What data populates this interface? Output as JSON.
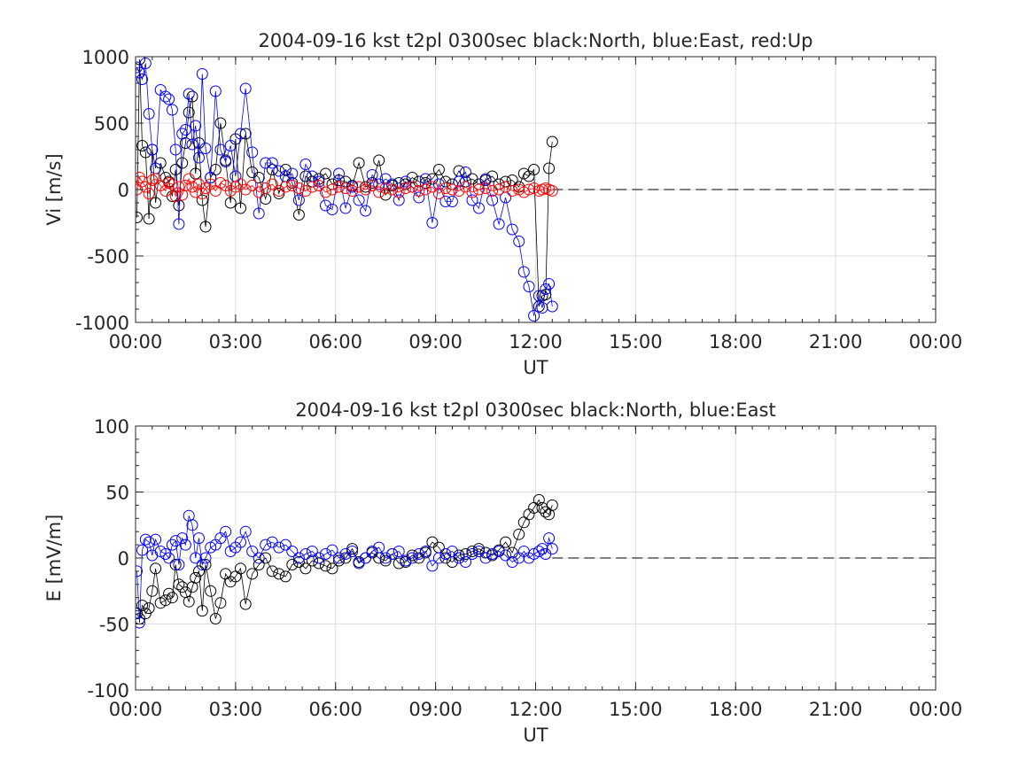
{
  "chart_data": [
    {
      "type": "scatter",
      "title": "2004-09-16 kst t2pl 0300sec black:North, blue:East, red:Up",
      "xlabel": "UT",
      "ylabel": "Vi [m/s]",
      "xlim": [
        0,
        24
      ],
      "ylim": [
        -1000,
        1000
      ],
      "x_ticks": [
        0,
        3,
        6,
        9,
        12,
        15,
        18,
        21,
        24
      ],
      "x_tick_labels": [
        "00:00",
        "03:00",
        "06:00",
        "09:00",
        "12:00",
        "15:00",
        "18:00",
        "21:00",
        "00:00"
      ],
      "y_ticks": [
        1000,
        500,
        0,
        -500,
        -1000
      ],
      "y_tick_labels": [
        "1000",
        "500",
        "0",
        "-500",
        "-1000"
      ],
      "grid": true,
      "reference_line": {
        "y": 0,
        "style": "dashed"
      },
      "series": [
        {
          "name": "North",
          "color": "#000000",
          "x": [
            0.04,
            0.12,
            0.2,
            0.3,
            0.4,
            0.5,
            0.6,
            0.75,
            0.9,
            1.0,
            1.1,
            1.2,
            1.3,
            1.4,
            1.5,
            1.6,
            1.7,
            1.8,
            1.9,
            2.0,
            2.1,
            2.25,
            2.4,
            2.55,
            2.7,
            2.85,
            3.0,
            3.15,
            3.3,
            3.5,
            3.7,
            3.9,
            4.1,
            4.3,
            4.5,
            4.7,
            4.9,
            5.1,
            5.3,
            5.5,
            5.7,
            5.9,
            6.1,
            6.3,
            6.5,
            6.7,
            6.9,
            7.1,
            7.3,
            7.5,
            7.7,
            7.9,
            8.1,
            8.3,
            8.5,
            8.7,
            8.9,
            9.1,
            9.3,
            9.5,
            9.7,
            9.9,
            10.1,
            10.3,
            10.5,
            10.7,
            10.9,
            11.1,
            11.3,
            11.5,
            11.65,
            11.8,
            11.95,
            12.1,
            12.2,
            12.3,
            12.4,
            12.5
          ],
          "y": [
            -210,
            980,
            330,
            280,
            -220,
            300,
            -100,
            200,
            90,
            60,
            -50,
            150,
            -120,
            200,
            350,
            580,
            700,
            120,
            350,
            -80,
            -280,
            90,
            150,
            500,
            220,
            -100,
            380,
            -140,
            420,
            130,
            90,
            -70,
            150,
            -30,
            150,
            50,
            -190,
            100,
            60,
            80,
            120,
            40,
            70,
            60,
            30,
            200,
            20,
            50,
            220,
            -40,
            30,
            50,
            40,
            90,
            60,
            50,
            80,
            150,
            60,
            40,
            140,
            60,
            80,
            40,
            70,
            100,
            40,
            60,
            70,
            20,
            120,
            100,
            150,
            -880,
            -800,
            -790,
            160,
            360
          ]
        },
        {
          "name": "East",
          "color": "#0000ff",
          "x": [
            0.04,
            0.12,
            0.2,
            0.3,
            0.4,
            0.5,
            0.6,
            0.75,
            0.9,
            1.0,
            1.1,
            1.2,
            1.3,
            1.4,
            1.5,
            1.6,
            1.7,
            1.8,
            1.9,
            2.0,
            2.1,
            2.25,
            2.4,
            2.55,
            2.7,
            2.85,
            3.0,
            3.15,
            3.3,
            3.5,
            3.7,
            3.9,
            4.1,
            4.3,
            4.5,
            4.7,
            4.9,
            5.1,
            5.3,
            5.5,
            5.7,
            5.9,
            6.1,
            6.3,
            6.5,
            6.7,
            6.9,
            7.1,
            7.3,
            7.5,
            7.7,
            7.9,
            8.1,
            8.3,
            8.5,
            8.7,
            8.9,
            9.1,
            9.3,
            9.5,
            9.7,
            9.9,
            10.1,
            10.3,
            10.5,
            10.7,
            10.9,
            11.1,
            11.3,
            11.5,
            11.65,
            11.8,
            11.95,
            12.1,
            12.2,
            12.3,
            12.4,
            12.5
          ],
          "y": [
            920,
            880,
            830,
            950,
            570,
            300,
            160,
            750,
            700,
            680,
            600,
            300,
            -260,
            420,
            450,
            720,
            340,
            480,
            240,
            870,
            310,
            90,
            740,
            300,
            210,
            330,
            100,
            420,
            760,
            280,
            -180,
            200,
            200,
            140,
            100,
            120,
            -80,
            190,
            100,
            60,
            -120,
            -150,
            120,
            -140,
            20,
            -80,
            -160,
            110,
            40,
            80,
            40,
            -80,
            60,
            20,
            -60,
            80,
            -250,
            40,
            -90,
            -90,
            60,
            130,
            -80,
            -140,
            80,
            -80,
            -260,
            -60,
            -300,
            -390,
            -620,
            -730,
            -950,
            -800,
            -890,
            -750,
            -710,
            -880
          ]
        },
        {
          "name": "Up",
          "color": "#ff0000",
          "x": [
            0.04,
            0.12,
            0.2,
            0.3,
            0.4,
            0.5,
            0.6,
            0.75,
            0.9,
            1.0,
            1.1,
            1.2,
            1.3,
            1.4,
            1.5,
            1.6,
            1.7,
            1.8,
            1.9,
            2.0,
            2.1,
            2.25,
            2.4,
            2.55,
            2.7,
            2.85,
            3.0,
            3.15,
            3.3,
            3.5,
            3.7,
            3.9,
            4.1,
            4.3,
            4.5,
            4.7,
            4.9,
            5.1,
            5.3,
            5.5,
            5.7,
            5.9,
            6.1,
            6.3,
            6.5,
            6.7,
            6.9,
            7.1,
            7.3,
            7.5,
            7.7,
            7.9,
            8.1,
            8.3,
            8.5,
            8.7,
            8.9,
            9.1,
            9.3,
            9.5,
            9.7,
            9.9,
            10.1,
            10.3,
            10.5,
            10.7,
            10.9,
            11.1,
            11.3,
            11.5,
            11.65,
            11.8,
            11.95,
            12.1,
            12.2,
            12.3,
            12.4,
            12.5
          ],
          "y": [
            0,
            90,
            60,
            20,
            -30,
            70,
            80,
            30,
            -10,
            50,
            40,
            -50,
            20,
            -40,
            30,
            80,
            20,
            -20,
            40,
            -30,
            10,
            40,
            -10,
            50,
            30,
            -10,
            20,
            40,
            0,
            30,
            -20,
            10,
            40,
            -10,
            20,
            30,
            10,
            -10,
            20,
            30,
            -20,
            0,
            20,
            10,
            -10,
            20,
            0,
            30,
            -20,
            10,
            0,
            -20,
            10,
            20,
            -10,
            0,
            20,
            -30,
            10,
            0,
            -10,
            20,
            -20,
            0,
            10,
            -10,
            0,
            20,
            -10,
            0,
            -20,
            0,
            10,
            -10,
            0,
            10,
            0,
            -10
          ]
        }
      ]
    },
    {
      "type": "scatter",
      "title": "2004-09-16 kst t2pl 0300sec black:North, blue:East",
      "xlabel": "UT",
      "ylabel": "E [mV/m]",
      "xlim": [
        0,
        24
      ],
      "ylim": [
        -100,
        100
      ],
      "x_ticks": [
        0,
        3,
        6,
        9,
        12,
        15,
        18,
        21,
        24
      ],
      "x_tick_labels": [
        "00:00",
        "03:00",
        "06:00",
        "09:00",
        "12:00",
        "15:00",
        "18:00",
        "21:00",
        "00:00"
      ],
      "y_ticks": [
        100,
        50,
        0,
        -50,
        -100
      ],
      "y_tick_labels": [
        "100",
        "50",
        "0",
        "-50",
        "-100"
      ],
      "grid": true,
      "reference_line": {
        "y": 0,
        "style": "dashed"
      },
      "series": [
        {
          "name": "North",
          "color": "#000000",
          "x": [
            0.04,
            0.12,
            0.2,
            0.3,
            0.4,
            0.5,
            0.6,
            0.75,
            0.9,
            1.0,
            1.1,
            1.2,
            1.3,
            1.4,
            1.5,
            1.6,
            1.7,
            1.8,
            1.9,
            2.0,
            2.1,
            2.25,
            2.4,
            2.55,
            2.7,
            2.85,
            3.0,
            3.15,
            3.3,
            3.5,
            3.7,
            3.9,
            4.1,
            4.3,
            4.5,
            4.7,
            4.9,
            5.1,
            5.3,
            5.5,
            5.7,
            5.9,
            6.1,
            6.3,
            6.5,
            6.7,
            6.9,
            7.1,
            7.3,
            7.5,
            7.7,
            7.9,
            8.1,
            8.3,
            8.5,
            8.7,
            8.9,
            9.1,
            9.3,
            9.5,
            9.7,
            9.9,
            10.1,
            10.3,
            10.5,
            10.7,
            10.9,
            11.1,
            11.3,
            11.5,
            11.65,
            11.8,
            11.95,
            12.1,
            12.2,
            12.3,
            12.4,
            12.5
          ],
          "y": [
            -42,
            -46,
            -36,
            -42,
            -38,
            -25,
            -8,
            -34,
            -32,
            -27,
            -30,
            -5,
            -20,
            -22,
            -26,
            -33,
            -22,
            -15,
            -10,
            -40,
            -5,
            -25,
            -46,
            -34,
            -12,
            -18,
            -14,
            -8,
            -35,
            -12,
            -5,
            0,
            -10,
            -12,
            -14,
            -5,
            -3,
            -8,
            -2,
            -4,
            -6,
            -8,
            -2,
            0,
            7,
            -3,
            0,
            4,
            0,
            -2,
            3,
            -4,
            -3,
            2,
            0,
            4,
            12,
            8,
            0,
            -3,
            2,
            3,
            5,
            7,
            4,
            2,
            6,
            12,
            4,
            18,
            27,
            33,
            38,
            44,
            38,
            35,
            33,
            40
          ]
        },
        {
          "name": "East",
          "color": "#0000ff",
          "x": [
            0.04,
            0.12,
            0.2,
            0.3,
            0.4,
            0.5,
            0.6,
            0.75,
            0.9,
            1.0,
            1.1,
            1.2,
            1.3,
            1.4,
            1.5,
            1.6,
            1.7,
            1.8,
            1.9,
            2.0,
            2.1,
            2.25,
            2.4,
            2.55,
            2.7,
            2.85,
            3.0,
            3.15,
            3.3,
            3.5,
            3.7,
            3.9,
            4.1,
            4.3,
            4.5,
            4.7,
            4.9,
            5.1,
            5.3,
            5.5,
            5.7,
            5.9,
            6.1,
            6.3,
            6.5,
            6.7,
            6.9,
            7.1,
            7.3,
            7.5,
            7.7,
            7.9,
            8.1,
            8.3,
            8.5,
            8.7,
            8.9,
            9.1,
            9.3,
            9.5,
            9.7,
            9.9,
            10.1,
            10.3,
            10.5,
            10.7,
            10.9,
            11.1,
            11.3,
            11.5,
            11.65,
            11.8,
            11.95,
            12.1,
            12.2,
            12.3,
            12.4,
            12.5
          ],
          "y": [
            -10,
            -49,
            6,
            14,
            12,
            2,
            14,
            5,
            3,
            0,
            10,
            13,
            -5,
            15,
            10,
            32,
            25,
            0,
            15,
            -5,
            0,
            8,
            10,
            15,
            20,
            5,
            8,
            12,
            20,
            5,
            0,
            10,
            12,
            8,
            10,
            5,
            0,
            3,
            5,
            0,
            3,
            6,
            0,
            3,
            5,
            -4,
            0,
            5,
            8,
            0,
            3,
            5,
            -2,
            0,
            3,
            5,
            -6,
            0,
            3,
            5,
            0,
            -3,
            3,
            5,
            0,
            3,
            5,
            2,
            -3,
            0,
            5,
            0,
            3,
            5,
            7,
            3,
            15,
            7
          ]
        }
      ]
    }
  ]
}
